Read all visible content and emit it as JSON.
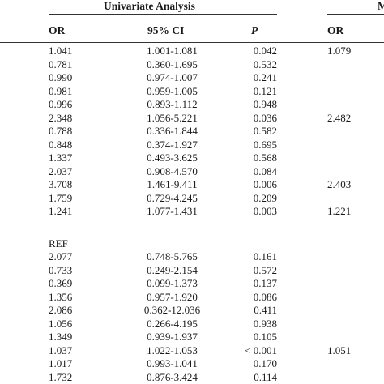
{
  "table": {
    "group_headers": {
      "univariate": "Univariate Analysis",
      "multivariate_partial": "M"
    },
    "columns": {
      "or": "OR",
      "ci": "95% CI",
      "p": "P",
      "multi_or": "OR"
    },
    "rows": [
      {
        "or": "1.041",
        "ci": "1.001-1.081",
        "p": "0.042",
        "multi_or": "1.079"
      },
      {
        "or": "0.781",
        "ci": "0.360-1.695",
        "p": "0.532",
        "multi_or": ""
      },
      {
        "or": "0.990",
        "ci": "0.974-1.007",
        "p": "0.241",
        "multi_or": ""
      },
      {
        "or": "0.981",
        "ci": "0.959-1.005",
        "p": "0.121",
        "multi_or": ""
      },
      {
        "or": "0.996",
        "ci": "0.893-1.112",
        "p": "0.948",
        "multi_or": ""
      },
      {
        "or": "2.348",
        "ci": "1.056-5.221",
        "p": "0.036",
        "multi_or": "2.482"
      },
      {
        "or": "0.788",
        "ci": "0.336-1.844",
        "p": "0.582",
        "multi_or": ""
      },
      {
        "or": "0.848",
        "ci": "0.374-1.927",
        "p": "0.695",
        "multi_or": ""
      },
      {
        "or": "1.337",
        "ci": "0.493-3.625",
        "p": "0.568",
        "multi_or": ""
      },
      {
        "or": "2.037",
        "ci": "0.908-4.570",
        "p": "0.084",
        "multi_or": ""
      },
      {
        "or": "3.708",
        "ci": "1.461-9.411",
        "p": "0.006",
        "multi_or": "2.403"
      },
      {
        "or": "1.759",
        "ci": "0.729-4.245",
        "p": "0.209",
        "multi_or": ""
      },
      {
        "or": "1.241",
        "ci": "1.077-1.431",
        "p": "0.003",
        "multi_or": "1.221"
      },
      {
        "spacer": true
      },
      {
        "or": "REF",
        "ci": "",
        "p": "",
        "multi_or": ""
      },
      {
        "or": "2.077",
        "ci": "0.748-5.765",
        "p": "0.161",
        "multi_or": ""
      },
      {
        "or": "0.733",
        "ci": "0.249-2.154",
        "p": "0.572",
        "multi_or": ""
      },
      {
        "or": "0.369",
        "ci": "0.099-1.373",
        "p": "0.137",
        "multi_or": ""
      },
      {
        "or": "1.356",
        "ci": "0.957-1.920",
        "p": "0.086",
        "multi_or": ""
      },
      {
        "or": "2.086",
        "ci": "0.362-12.036",
        "p": "0.411",
        "multi_or": ""
      },
      {
        "or": "1.056",
        "ci": "0.266-4.195",
        "p": "0.938",
        "multi_or": ""
      },
      {
        "or": "1.349",
        "ci": "0.939-1.937",
        "p": "0.105",
        "multi_or": ""
      },
      {
        "or": "1.037",
        "ci": "1.022-1.053",
        "p": "< 0.001",
        "multi_or": "1.051"
      },
      {
        "or": "1.017",
        "ci": "0.993-1.041",
        "p": "0.170",
        "multi_or": ""
      },
      {
        "or": "1.732",
        "ci": "0.876-3.424",
        "p": "0.114",
        "multi_or": ""
      }
    ]
  }
}
